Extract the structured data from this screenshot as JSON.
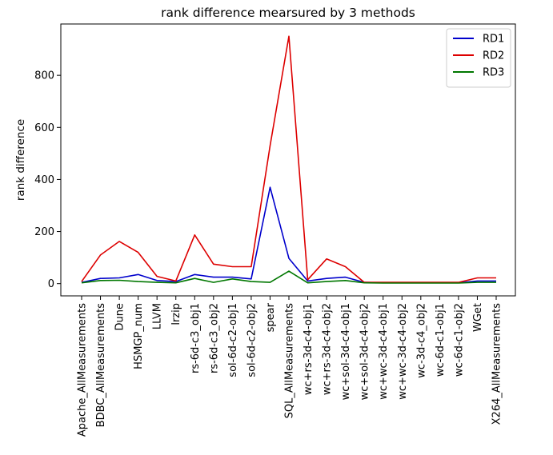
{
  "chart_data": {
    "type": "line",
    "title": "rank difference mearsured by 3 methods",
    "xlabel": "",
    "ylabel": "rank difference",
    "categories": [
      "Apache_AllMeasurements",
      "BDBC_AllMeasurements",
      "Dune",
      "HSMGP_num",
      "LLVM",
      "lrzip",
      "rs-6d-c3_obj1",
      "rs-6d-c3_obj2",
      "sol-6d-c2-obj1",
      "sol-6d-c2-obj2",
      "spear",
      "SQL_AllMeasurements",
      "wc+rs-3d-c4-obj1",
      "wc+rs-3d-c4-obj2",
      "wc+sol-3d-c4-obj1",
      "wc+sol-3d-c4-obj2",
      "wc+wc-3d-c4-obj1",
      "wc+wc-3d-c4-obj2",
      "wc-3d-c4_obj2",
      "wc-6d-c1-obj1",
      "wc-6d-c1-obj2",
      "WGet",
      "X264_AllMeasurements"
    ],
    "series": [
      {
        "name": "RD1",
        "color": "#0000cc",
        "values": [
          5,
          20,
          22,
          35,
          12,
          8,
          35,
          25,
          25,
          18,
          370,
          97,
          10,
          20,
          25,
          5,
          3,
          3,
          3,
          3,
          3,
          10,
          10
        ]
      },
      {
        "name": "RD2",
        "color": "#dd0000",
        "values": [
          8,
          110,
          162,
          120,
          28,
          10,
          187,
          75,
          65,
          65,
          530,
          950,
          15,
          95,
          65,
          5,
          5,
          5,
          5,
          5,
          5,
          22,
          22
        ]
      },
      {
        "name": "RD3",
        "color": "#007700",
        "values": [
          3,
          12,
          13,
          8,
          5,
          3,
          20,
          5,
          18,
          8,
          5,
          48,
          3,
          8,
          12,
          3,
          2,
          2,
          2,
          2,
          2,
          5,
          5
        ]
      }
    ],
    "ylim": [
      -47,
      997
    ],
    "yticks": [
      0,
      200,
      400,
      600,
      800
    ],
    "grid": false,
    "legend_position": "top-right"
  }
}
